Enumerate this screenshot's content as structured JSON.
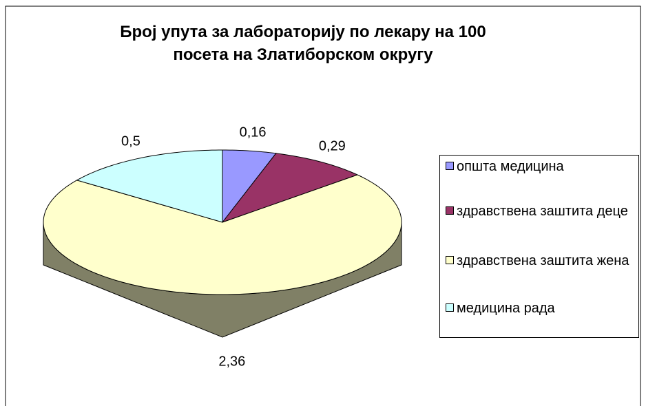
{
  "chart_data": {
    "type": "pie3d",
    "title": "Број упута за лабораторију по лекару на 100 посета на Златиборском округу",
    "categories": [
      "општа медицина",
      "здравствена заштита деце",
      "здравствена заштита жена",
      "медицина рада"
    ],
    "values": [
      0.16,
      0.29,
      2.36,
      0.5
    ],
    "value_labels": [
      "0,16",
      "0,29",
      "2,36",
      "0,5"
    ],
    "colors": [
      "#9999ff",
      "#993366",
      "#ffffcc",
      "#ccffff"
    ],
    "legend": "right"
  }
}
